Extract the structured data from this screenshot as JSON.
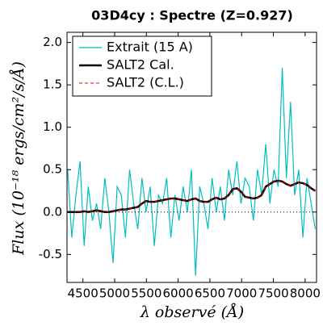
{
  "chart_data": {
    "type": "line",
    "title": "03D4cy : Spectre (Z=0.927)",
    "xlabel": "λ observé (Å)",
    "ylabel": "Flux (10⁻¹⁸ ergs/cm²/s/Å)",
    "x": [
      4260,
      4325,
      4390,
      4455,
      4520,
      4585,
      4650,
      4715,
      4780,
      4845,
      4910,
      4975,
      5040,
      5105,
      5170,
      5235,
      5300,
      5365,
      5430,
      5495,
      5560,
      5625,
      5690,
      5755,
      5820,
      5885,
      5950,
      6015,
      6080,
      6145,
      6210,
      6275,
      6340,
      6405,
      6470,
      6535,
      6600,
      6665,
      6730,
      6795,
      6860,
      6925,
      6990,
      7055,
      7120,
      7185,
      7250,
      7315,
      7380,
      7445,
      7510,
      7575,
      7640,
      7705,
      7770,
      7835,
      7900,
      7965,
      8030,
      8095,
      8160
    ],
    "series": [
      {
        "name": "Extrait (15 A)",
        "color": "#00bfbf",
        "width": 1.2,
        "dash": "none",
        "values": [
          0.5,
          -0.3,
          0.2,
          0.6,
          -0.4,
          0.3,
          -0.1,
          0.1,
          -0.2,
          0.4,
          0.0,
          -0.6,
          0.3,
          0.2,
          -0.3,
          0.5,
          0.1,
          -0.2,
          0.4,
          0.0,
          0.3,
          -0.4,
          0.2,
          0.1,
          0.4,
          -0.3,
          0.2,
          -0.1,
          0.3,
          0.0,
          0.5,
          -0.75,
          0.3,
          0.1,
          -0.2,
          0.4,
          0.0,
          0.3,
          -0.1,
          0.5,
          0.2,
          0.6,
          0.1,
          0.4,
          0.3,
          -0.1,
          0.5,
          0.2,
          0.8,
          0.1,
          0.5,
          0.3,
          1.7,
          0.4,
          1.3,
          0.2,
          0.5,
          -0.3,
          0.4,
          0.1,
          -0.2
        ]
      },
      {
        "name": "SALT2 Cal.",
        "color": "#000000",
        "width": 2.5,
        "dash": "none",
        "values": [
          0,
          0,
          0,
          0,
          0.01,
          0,
          0.01,
          0.02,
          0.01,
          0,
          0,
          0.01,
          0.02,
          0.03,
          0.03,
          0.04,
          0.05,
          0.06,
          0.1,
          0.13,
          0.12,
          0.12,
          0.13,
          0.14,
          0.15,
          0.16,
          0.16,
          0.15,
          0.14,
          0.13,
          0.15,
          0.16,
          0.13,
          0.12,
          0.12,
          0.15,
          0.17,
          0.15,
          0.16,
          0.2,
          0.27,
          0.28,
          0.24,
          0.18,
          0.17,
          0.16,
          0.17,
          0.2,
          0.3,
          0.33,
          0.36,
          0.37,
          0.36,
          0.33,
          0.31,
          0.33,
          0.35,
          0.34,
          0.32,
          0.28,
          0.25
        ]
      },
      {
        "name": "SALT2 (C.L.)",
        "color": "#ff0000",
        "width": 1,
        "dash": "4 3",
        "values": [
          0,
          0,
          0,
          0,
          0.01,
          0,
          0.01,
          0.02,
          0.01,
          0,
          0,
          0.01,
          0.02,
          0.03,
          0.03,
          0.04,
          0.05,
          0.06,
          0.1,
          0.13,
          0.12,
          0.12,
          0.13,
          0.14,
          0.15,
          0.16,
          0.16,
          0.15,
          0.14,
          0.13,
          0.15,
          0.16,
          0.13,
          0.12,
          0.12,
          0.15,
          0.17,
          0.15,
          0.16,
          0.2,
          0.27,
          0.28,
          0.24,
          0.18,
          0.17,
          0.16,
          0.17,
          0.2,
          0.3,
          0.33,
          0.36,
          0.37,
          0.36,
          0.33,
          0.31,
          0.33,
          0.35,
          0.34,
          0.32,
          0.28,
          0.25
        ]
      }
    ],
    "xlim": [
      4250,
      8180
    ],
    "xticks": [
      4500,
      5000,
      5500,
      6000,
      6500,
      7000,
      7500,
      8000
    ],
    "ylim": [
      -0.83,
      2.12
    ],
    "yticks": [
      -0.5,
      {
        "value": 0,
        "label": "0.0"
      },
      0.5,
      {
        "value": 1,
        "label": "1.0"
      },
      1.5,
      {
        "value": 2,
        "label": "2.0"
      }
    ],
    "legend": "upper left",
    "zero_line": true
  }
}
